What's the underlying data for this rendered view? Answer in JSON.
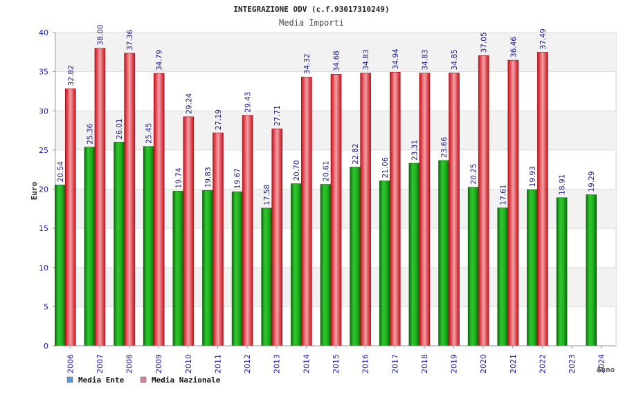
{
  "chart_data": {
    "type": "bar",
    "title": "INTEGRAZIONE ODV (c.f.93017310249)",
    "subtitle": "Media Importi",
    "xlabel": "Anno",
    "ylabel": "Euro",
    "ylim": [
      0,
      40
    ],
    "yticks": [
      0,
      5,
      10,
      15,
      20,
      25,
      30,
      35,
      40
    ],
    "grid": true,
    "legend_position": "bottom-left",
    "categories": [
      "2006",
      "2007",
      "2008",
      "2009",
      "2010",
      "2011",
      "2012",
      "2013",
      "2014",
      "2015",
      "2016",
      "2017",
      "2018",
      "2019",
      "2020",
      "2021",
      "2022",
      "2023",
      "2024"
    ],
    "series": [
      {
        "name": "Media Ente",
        "color": "#1a9e1a",
        "legend_color": "#5b9bd5",
        "values": [
          20.54,
          25.36,
          26.01,
          25.45,
          19.74,
          19.83,
          19.67,
          17.58,
          20.7,
          20.61,
          22.82,
          21.06,
          23.31,
          23.66,
          20.25,
          17.61,
          19.93,
          18.91,
          19.29
        ],
        "labels": [
          "20.54",
          "25.36",
          "26.01",
          "25.45",
          "19.74",
          "19.83",
          "19.67",
          "17.58",
          "20.70",
          "20.61",
          "22.82",
          "21.06",
          "23.31",
          "23.66",
          "20.25",
          "17.61",
          "19.93",
          "18.91",
          "19.29"
        ]
      },
      {
        "name": "Media Nazionale",
        "color": "#e0202a",
        "legend_color": "#d47fa6",
        "values": [
          32.82,
          38.0,
          37.36,
          34.79,
          29.24,
          27.19,
          29.43,
          27.71,
          34.32,
          34.68,
          34.83,
          34.94,
          34.83,
          34.85,
          37.05,
          36.46,
          37.49,
          null,
          null
        ],
        "labels": [
          "32.82",
          "38.00",
          "37.36",
          "34.79",
          "29.24",
          "27.19",
          "29.43",
          "27.71",
          "34.32",
          "34.68",
          "34.83",
          "34.94",
          "34.83",
          "34.85",
          "37.05",
          "36.46",
          "37.49",
          null,
          null
        ]
      }
    ]
  }
}
